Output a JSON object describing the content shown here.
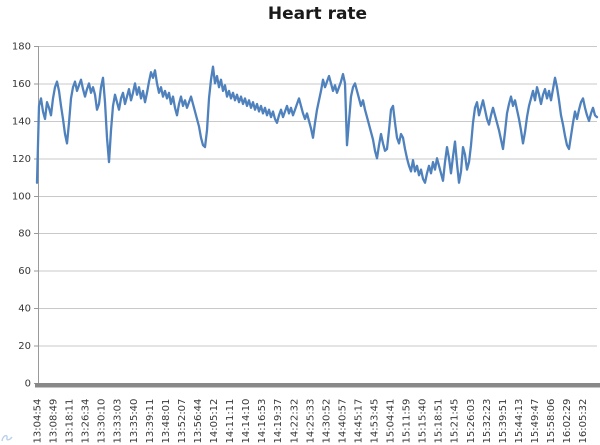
{
  "colors": {
    "line": "#4F81BD",
    "gridline": "#C9C9C9",
    "axis": "#9A9A9A",
    "axis_bar": "#888888",
    "tick_text": "#383838",
    "title_text": "#1A1A1A",
    "background": "#FFFFFF",
    "artifact": "#7FA8D9"
  },
  "chart_data": {
    "type": "line",
    "title": "Heart rate",
    "xlabel": "",
    "ylabel": "",
    "legend": "none",
    "grid": "horizontal",
    "ylim": [
      0,
      180
    ],
    "y_step": 20,
    "y_ticks": [
      180,
      160,
      140,
      120,
      100,
      80,
      60,
      40,
      20,
      0
    ],
    "x_tick_labels": [
      "13:04:54",
      "13:08:49",
      "13:18:11",
      "13:26:34",
      "13:30:10",
      "13:33:03",
      "13:35:40",
      "13:39:11",
      "13:48:01",
      "13:52:07",
      "13:56:44",
      "14:05:12",
      "14:11:11",
      "14:14:10",
      "14:16:53",
      "14:19:37",
      "14:22:32",
      "14:25:33",
      "14:30:52",
      "14:40:57",
      "14:45:17",
      "14:53:45",
      "15:04:41",
      "15:11:59",
      "15:15:40",
      "15:18:51",
      "15:21:45",
      "15:26:03",
      "15:32:23",
      "15:39:51",
      "15:44:13",
      "15:49:47",
      "15:58:06",
      "16:02:29",
      "16:05:32"
    ],
    "series_name": "Heart rate",
    "values": [
      107,
      148,
      152,
      145,
      141,
      150,
      147,
      143,
      152,
      158,
      161,
      156,
      148,
      141,
      133,
      128,
      139,
      152,
      158,
      161,
      156,
      159,
      162,
      157,
      153,
      157,
      160,
      155,
      158,
      154,
      146,
      149,
      158,
      163,
      150,
      131,
      118,
      135,
      148,
      154,
      150,
      146,
      152,
      155,
      149,
      153,
      157,
      151,
      155,
      160,
      154,
      158,
      152,
      156,
      150,
      155,
      161,
      166,
      163,
      167,
      160,
      155,
      158,
      153,
      156,
      152,
      155,
      149,
      153,
      147,
      143,
      149,
      153,
      148,
      151,
      147,
      150,
      153,
      149,
      145,
      141,
      137,
      131,
      127,
      126,
      135,
      152,
      162,
      169,
      160,
      164,
      158,
      162,
      156,
      159,
      153,
      156,
      152,
      155,
      151,
      154,
      150,
      153,
      149,
      152,
      148,
      151,
      147,
      150,
      146,
      149,
      145,
      148,
      144,
      147,
      143,
      146,
      142,
      145,
      141,
      139,
      143,
      146,
      142,
      145,
      148,
      144,
      147,
      143,
      146,
      149,
      152,
      148,
      144,
      141,
      144,
      140,
      136,
      131,
      139,
      146,
      151,
      156,
      162,
      158,
      161,
      164,
      160,
      156,
      159,
      155,
      158,
      161,
      165,
      160,
      127,
      140,
      153,
      158,
      160,
      156,
      152,
      148,
      151,
      146,
      142,
      138,
      134,
      130,
      124,
      120,
      127,
      133,
      128,
      124,
      125,
      135,
      146,
      148,
      139,
      131,
      128,
      133,
      131,
      125,
      120,
      116,
      113,
      119,
      113,
      116,
      111,
      114,
      109,
      107,
      112,
      116,
      112,
      118,
      114,
      120,
      116,
      112,
      108,
      118,
      126,
      120,
      112,
      121,
      129,
      117,
      107,
      113,
      126,
      122,
      114,
      118,
      127,
      139,
      147,
      150,
      143,
      147,
      151,
      146,
      141,
      138,
      143,
      147,
      143,
      139,
      135,
      130,
      125,
      134,
      144,
      149,
      153,
      148,
      151,
      146,
      141,
      135,
      128,
      134,
      142,
      148,
      152,
      156,
      151,
      158,
      154,
      149,
      154,
      157,
      152,
      156,
      151,
      157,
      163,
      158,
      151,
      143,
      138,
      132,
      127,
      125,
      132,
      139,
      145,
      141,
      146,
      150,
      152,
      147,
      143,
      140,
      144,
      147,
      143,
      142
    ]
  }
}
